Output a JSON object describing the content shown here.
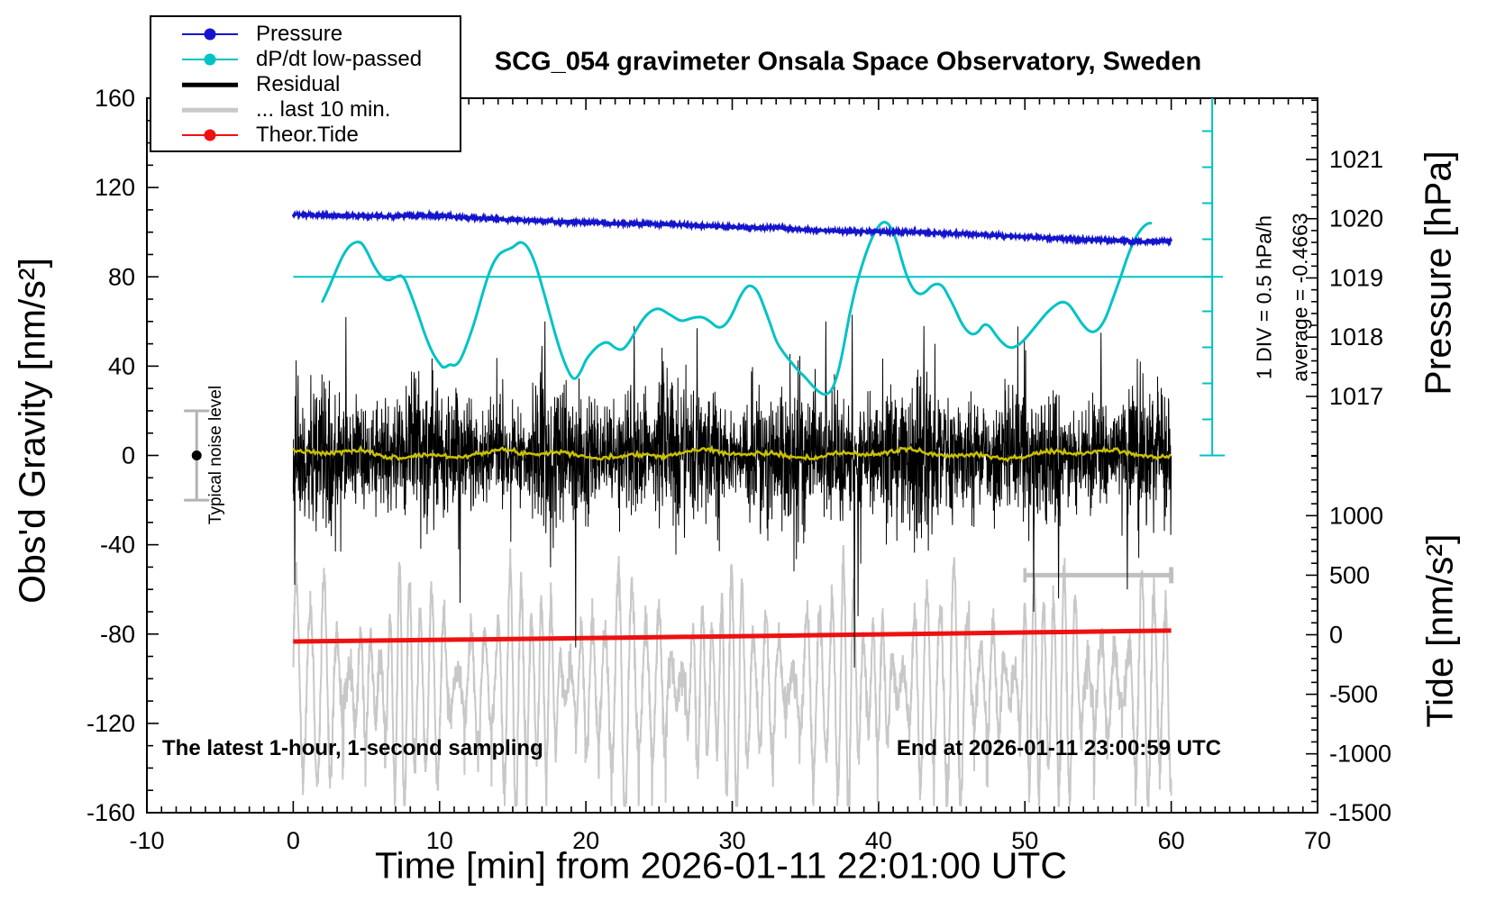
{
  "chart_data": {
    "type": "line",
    "title": "SCG_054 gravimeter Onsala Space Observatory, Sweden",
    "x_axis": {
      "label": "Time [min] from 2026-01-11 22:01:00 UTC",
      "min": -10,
      "max": 70,
      "major_tick_step": 10,
      "minor_tick_step": 1,
      "tick_labels": [
        -10,
        0,
        10,
        20,
        30,
        40,
        50,
        60,
        70
      ]
    },
    "left_axis": {
      "label": "Obs'd Gravity [nm/s²]",
      "min": -160,
      "max": 160,
      "major_tick_step": 40,
      "minor_tick_step": 10,
      "tick_labels": [
        160,
        120,
        80,
        40,
        0,
        -40,
        -80,
        -120,
        -160
      ]
    },
    "pressure_axis": {
      "label": "Pressure [hPa]",
      "tick_labels": [
        1021,
        1020,
        1019,
        1018,
        1017
      ],
      "minor_tick_step": 0.2,
      "gravity_ref_value": 1019,
      "gravity_ref": 79.5,
      "gravity_units_per_hpa": 26.53
    },
    "tide_axis": {
      "label": "Tide [nm/s²]",
      "tick_labels": [
        1000,
        500,
        0,
        -500,
        -1000,
        -1500
      ],
      "minor_tick_step": 100,
      "gravity_at_zero": -80.3,
      "units_per_gravity_unit": 18.75
    },
    "legend_items": [
      {
        "label": "Pressure",
        "color": "#1414cd",
        "marker": "line-dot"
      },
      {
        "label": "dP/dt low-passed",
        "color": "#00c3c6",
        "marker": "line-dot"
      },
      {
        "label": "Residual",
        "color": "#000000",
        "marker": "thick-line"
      },
      {
        "label": "... last 10 min.",
        "color": "#c8c8c8",
        "marker": "thick-line"
      },
      {
        "label": "Theor.Tide",
        "color": "#ee1111",
        "marker": "line-dot"
      }
    ],
    "annotations": {
      "div_scale": "1 DIV = 0.5 hPa/h",
      "average": "average = -0.4663",
      "noise_level": "Typical noise level",
      "sampling": "The latest 1-hour, 1-second sampling",
      "end_time": "End at 2026-01-11 23:00:59 UTC"
    },
    "markers": {
      "dpdt_zero_line": {
        "gravity_value": 80,
        "from_time": 0,
        "to_time": 62.8
      },
      "dpdt_scale_bar": {
        "time": 62.8,
        "from_gravity": 0,
        "to_gravity": 160,
        "div_gravity_units": 16.14
      },
      "last10_interval_bar": {
        "from_time": 50,
        "to_time": 60,
        "tide_value": 500
      },
      "noise_marker": {
        "time": -6.6,
        "gravity": 0,
        "half_range": 20
      }
    },
    "series": [
      {
        "name": "Pressure",
        "axis": "pressure",
        "color": "#1414cd",
        "line_width": 3,
        "noise_sd_hpa": 0.012,
        "points": [
          [
            0,
            1020.07
          ],
          [
            2,
            1020.06
          ],
          [
            4,
            1020.05
          ],
          [
            6,
            1020.04
          ],
          [
            8,
            1020.045
          ],
          [
            9,
            1020.055
          ],
          [
            10,
            1020.05
          ],
          [
            12,
            1020.02
          ],
          [
            14,
            1019.99
          ],
          [
            16,
            1019.97
          ],
          [
            18,
            1019.95
          ],
          [
            20,
            1019.94
          ],
          [
            22,
            1019.92
          ],
          [
            24,
            1019.91
          ],
          [
            26,
            1019.9
          ],
          [
            28,
            1019.88
          ],
          [
            30,
            1019.86
          ],
          [
            32,
            1019.84
          ],
          [
            33,
            1019.85
          ],
          [
            35,
            1019.81
          ],
          [
            37,
            1019.79
          ],
          [
            39,
            1019.78
          ],
          [
            41,
            1019.78
          ],
          [
            43,
            1019.77
          ],
          [
            45,
            1019.75
          ],
          [
            47,
            1019.73
          ],
          [
            49,
            1019.7
          ],
          [
            51,
            1019.68
          ],
          [
            53,
            1019.66
          ],
          [
            55,
            1019.64
          ],
          [
            57,
            1019.62
          ],
          [
            58,
            1019.61
          ],
          [
            59,
            1019.62
          ],
          [
            60,
            1019.63
          ]
        ]
      },
      {
        "name": "dP/dt low-passed",
        "axis": "gravity",
        "color": "#00c3c6",
        "line_width": 3,
        "points": [
          [
            2,
            69
          ],
          [
            2.5,
            76
          ],
          [
            3,
            84
          ],
          [
            3.5,
            91
          ],
          [
            4,
            95
          ],
          [
            4.6,
            96
          ],
          [
            5,
            92
          ],
          [
            5.5,
            85
          ],
          [
            6,
            80
          ],
          [
            6.5,
            78
          ],
          [
            7,
            80
          ],
          [
            7.5,
            81
          ],
          [
            8,
            73
          ],
          [
            8.5,
            64
          ],
          [
            9,
            54
          ],
          [
            9.5,
            46
          ],
          [
            10,
            41
          ],
          [
            10.3,
            39
          ],
          [
            10.7,
            41
          ],
          [
            11,
            40
          ],
          [
            11.4,
            42
          ],
          [
            12,
            52
          ],
          [
            12.5,
            62
          ],
          [
            13,
            74
          ],
          [
            13.5,
            84
          ],
          [
            14,
            90
          ],
          [
            14.5,
            92
          ],
          [
            15,
            93
          ],
          [
            15.5,
            96
          ],
          [
            16,
            94
          ],
          [
            16.5,
            87
          ],
          [
            17,
            76
          ],
          [
            17.5,
            64
          ],
          [
            18,
            52
          ],
          [
            18.5,
            42
          ],
          [
            19,
            35
          ],
          [
            19.3,
            34
          ],
          [
            19.7,
            38
          ],
          [
            20,
            43
          ],
          [
            20.5,
            47
          ],
          [
            21,
            50
          ],
          [
            21.5,
            51
          ],
          [
            22,
            48
          ],
          [
            22.5,
            47
          ],
          [
            23,
            51
          ],
          [
            23.5,
            57
          ],
          [
            24,
            62
          ],
          [
            24.5,
            65
          ],
          [
            25,
            66
          ],
          [
            25.5,
            64
          ],
          [
            26,
            62
          ],
          [
            26.5,
            60
          ],
          [
            27,
            61
          ],
          [
            27.5,
            62
          ],
          [
            28,
            62
          ],
          [
            28.5,
            60
          ],
          [
            29,
            57
          ],
          [
            29.5,
            58
          ],
          [
            30,
            63
          ],
          [
            30.5,
            71
          ],
          [
            31,
            76
          ],
          [
            31.4,
            76
          ],
          [
            31.8,
            73
          ],
          [
            32.2,
            66
          ],
          [
            32.6,
            59
          ],
          [
            33,
            51
          ],
          [
            33.5,
            46
          ],
          [
            34,
            42
          ],
          [
            34.5,
            38
          ],
          [
            35,
            35
          ],
          [
            35.5,
            31
          ],
          [
            36,
            28
          ],
          [
            36.4,
            27
          ],
          [
            36.8,
            29
          ],
          [
            37.2,
            36
          ],
          [
            37.6,
            48
          ],
          [
            38,
            63
          ],
          [
            38.5,
            77
          ],
          [
            39,
            88
          ],
          [
            39.5,
            97
          ],
          [
            40,
            103
          ],
          [
            40.4,
            105
          ],
          [
            40.8,
            103
          ],
          [
            41.2,
            97
          ],
          [
            41.6,
            87
          ],
          [
            42,
            79
          ],
          [
            42.4,
            74
          ],
          [
            42.8,
            72
          ],
          [
            43.2,
            73
          ],
          [
            43.6,
            76
          ],
          [
            44,
            77
          ],
          [
            44.4,
            76
          ],
          [
            44.8,
            71
          ],
          [
            45.2,
            66
          ],
          [
            45.6,
            60
          ],
          [
            46,
            56
          ],
          [
            46.4,
            54
          ],
          [
            46.8,
            55
          ],
          [
            47.2,
            59
          ],
          [
            47.6,
            58
          ],
          [
            48,
            54
          ],
          [
            48.5,
            50
          ],
          [
            49,
            48
          ],
          [
            49.5,
            49
          ],
          [
            50,
            52
          ],
          [
            50.5,
            56
          ],
          [
            51,
            60
          ],
          [
            51.5,
            64
          ],
          [
            52,
            67
          ],
          [
            52.5,
            69
          ],
          [
            53,
            68
          ],
          [
            53.5,
            63
          ],
          [
            54,
            58
          ],
          [
            54.5,
            55
          ],
          [
            55,
            56
          ],
          [
            55.5,
            61
          ],
          [
            56,
            70
          ],
          [
            56.5,
            79
          ],
          [
            57,
            89
          ],
          [
            57.5,
            97
          ],
          [
            58,
            102
          ],
          [
            58.4,
            104
          ],
          [
            58.6,
            104
          ]
        ]
      },
      {
        "name": "Residual",
        "axis": "gravity",
        "color": "#000000",
        "line_width": 1,
        "noise": {
          "seed": 42,
          "sd": 14,
          "spike_prob": 0.003,
          "rate_hz": 1,
          "duration_min": 60
        },
        "extreme_spikes": [
          [
            3.6,
            62
          ],
          [
            11.4,
            -66
          ],
          [
            17.2,
            60
          ],
          [
            19.3,
            -86
          ],
          [
            23.3,
            58
          ],
          [
            27.6,
            57
          ],
          [
            36.4,
            60
          ],
          [
            38.2,
            63
          ],
          [
            38.35,
            -95
          ],
          [
            38.6,
            -72
          ],
          [
            43.1,
            58
          ],
          [
            50.6,
            -70
          ],
          [
            52.3,
            -64
          ],
          [
            55.2,
            55
          ],
          [
            57,
            -60
          ]
        ]
      },
      {
        "name": "Residual low-passed",
        "axis": "gravity",
        "color": "#c9c000",
        "line_width": 2.5,
        "noise": {
          "seed": 7,
          "center": 0.6,
          "amp": 2.5
        }
      },
      {
        "name": "... last 10 min.",
        "axis": "gravity",
        "color": "#c8c8c8",
        "line_width": 2,
        "noise": {
          "seed": 99,
          "center": -103,
          "base_period_min": 0.8,
          "amp_base": 30
        }
      },
      {
        "name": "Theor.Tide",
        "axis": "tide",
        "color": "#ee1111",
        "line_width": 5,
        "points": [
          [
            0,
            -57
          ],
          [
            5,
            -50
          ],
          [
            10,
            -43
          ],
          [
            15,
            -36
          ],
          [
            20,
            -28
          ],
          [
            25,
            -21
          ],
          [
            30,
            -13
          ],
          [
            35,
            -5
          ],
          [
            40,
            3
          ],
          [
            45,
            11
          ],
          [
            50,
            19
          ],
          [
            55,
            27
          ],
          [
            60,
            35
          ]
        ]
      }
    ]
  }
}
